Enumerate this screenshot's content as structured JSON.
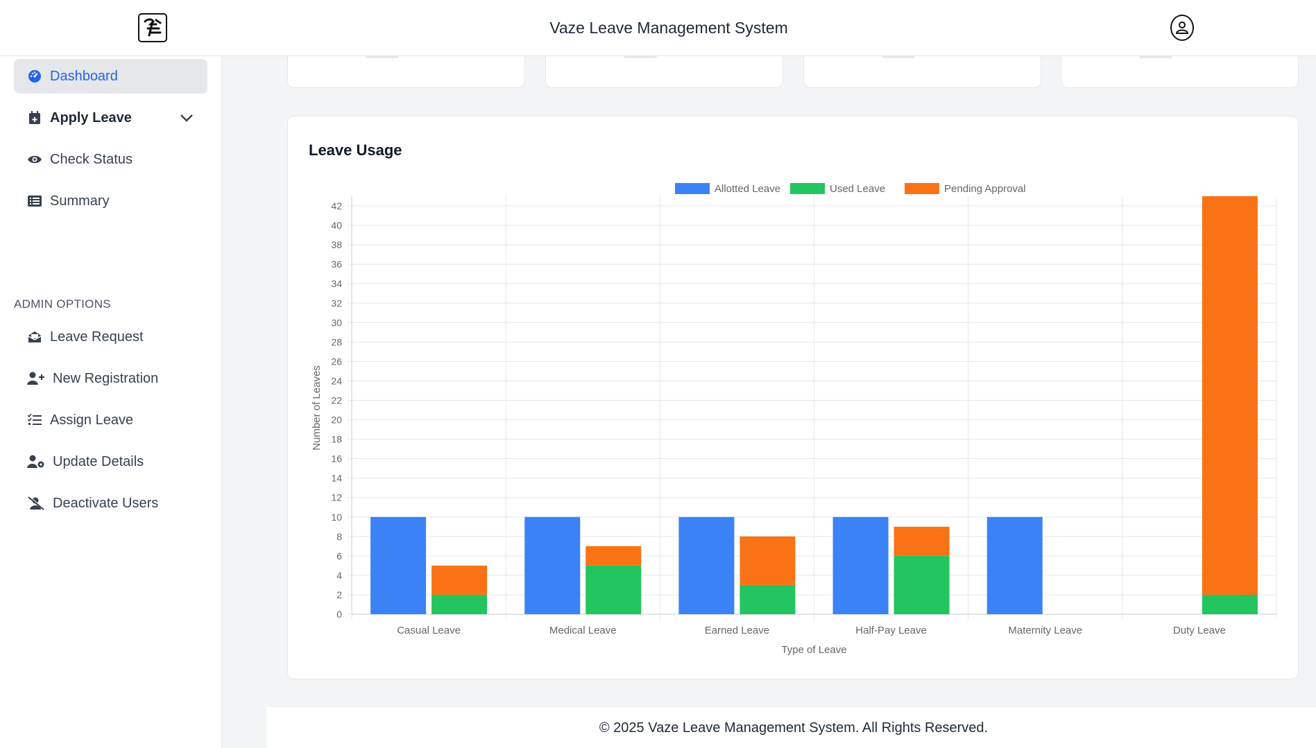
{
  "header": {
    "title": "Vaze Leave Management System"
  },
  "sidebar": {
    "items": [
      {
        "label": "Dashboard",
        "icon": "dashboard-icon"
      },
      {
        "label": "Apply Leave",
        "icon": "calendar-plus-icon"
      },
      {
        "label": "Check Status",
        "icon": "eye-icon"
      },
      {
        "label": "Summary",
        "icon": "list-icon"
      }
    ],
    "admin_section_label": "ADMIN OPTIONS",
    "admin_items": [
      {
        "label": "Leave Request",
        "icon": "envelope-open-icon"
      },
      {
        "label": "New Registration",
        "icon": "user-plus-icon"
      },
      {
        "label": "Assign Leave",
        "icon": "list-check-icon"
      },
      {
        "label": "Update Details",
        "icon": "user-gear-icon"
      },
      {
        "label": "Deactivate Users",
        "icon": "user-slash-icon"
      }
    ]
  },
  "colors": {
    "accent": "#2563eb",
    "allotted": "#3b82f6",
    "used": "#22c55e",
    "pending": "#f97316"
  },
  "main": {
    "chart_card_title": "Leave Usage"
  },
  "chart_data": {
    "type": "bar",
    "stacked_second_bar": true,
    "categories": [
      "Casual Leave",
      "Medical Leave",
      "Earned Leave",
      "Half-Pay Leave",
      "Maternity Leave",
      "Duty Leave"
    ],
    "series": [
      {
        "name": "Allotted Leave",
        "values": [
          10,
          10,
          10,
          10,
          10,
          0
        ]
      },
      {
        "name": "Used Leave",
        "values": [
          2,
          5,
          3,
          6,
          0,
          2
        ]
      },
      {
        "name": "Pending Approval",
        "values": [
          3,
          2,
          5,
          3,
          0,
          41
        ]
      }
    ],
    "xlabel": "Type of Leave",
    "ylabel": "Number of Leaves",
    "ylim": [
      0,
      43
    ],
    "yticks": [
      0,
      2,
      4,
      6,
      8,
      10,
      12,
      14,
      16,
      18,
      20,
      22,
      24,
      26,
      28,
      30,
      32,
      34,
      36,
      38,
      40,
      42
    ],
    "legend_position": "top",
    "grid": true
  },
  "footer": {
    "text": "© 2025 Vaze Leave Management System. All Rights Reserved."
  }
}
